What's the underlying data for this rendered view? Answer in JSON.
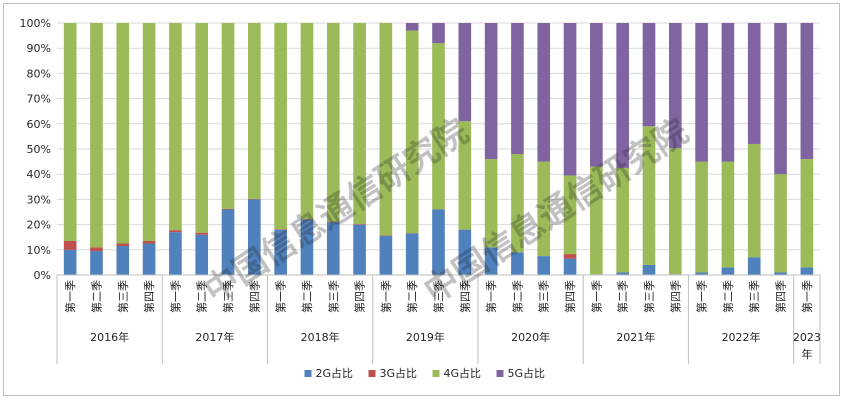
{
  "chart_data": {
    "type": "bar",
    "stacked": "percent",
    "categories": [
      {
        "quarter": "第一季",
        "year": "2016年"
      },
      {
        "quarter": "第二季",
        "year": "2016年"
      },
      {
        "quarter": "第三季",
        "year": "2016年"
      },
      {
        "quarter": "第四季",
        "year": "2016年"
      },
      {
        "quarter": "第一季",
        "year": "2017年"
      },
      {
        "quarter": "第二季",
        "year": "2017年"
      },
      {
        "quarter": "第三季",
        "year": "2017年"
      },
      {
        "quarter": "第四季",
        "year": "2017年"
      },
      {
        "quarter": "第一季",
        "year": "2018年"
      },
      {
        "quarter": "第二季",
        "year": "2018年"
      },
      {
        "quarter": "第三季",
        "year": "2018年"
      },
      {
        "quarter": "第四季",
        "year": "2018年"
      },
      {
        "quarter": "第一季",
        "year": "2019年"
      },
      {
        "quarter": "第二季",
        "year": "2019年"
      },
      {
        "quarter": "第三季",
        "year": "2019年"
      },
      {
        "quarter": "第四季",
        "year": "2019年"
      },
      {
        "quarter": "第一季",
        "year": "2020年"
      },
      {
        "quarter": "第二季",
        "year": "2020年"
      },
      {
        "quarter": "第三季",
        "year": "2020年"
      },
      {
        "quarter": "第四季",
        "year": "2020年"
      },
      {
        "quarter": "第一季",
        "year": "2021年"
      },
      {
        "quarter": "第二季",
        "year": "2021年"
      },
      {
        "quarter": "第三季",
        "year": "2021年"
      },
      {
        "quarter": "第四季",
        "year": "2021年"
      },
      {
        "quarter": "第一季",
        "year": "2022年"
      },
      {
        "quarter": "第二季",
        "year": "2022年"
      },
      {
        "quarter": "第三季",
        "year": "2022年"
      },
      {
        "quarter": "第四季",
        "year": "2022年"
      },
      {
        "quarter": "第一季",
        "year": "2023年"
      }
    ],
    "year_groups": [
      {
        "label": "2016年",
        "count": 4
      },
      {
        "label": "2017年",
        "count": 4
      },
      {
        "label": "2018年",
        "count": 4
      },
      {
        "label": "2019年",
        "count": 4
      },
      {
        "label": "2020年",
        "count": 4
      },
      {
        "label": "2021年",
        "count": 4
      },
      {
        "label": "2022年",
        "count": 4
      },
      {
        "label": "2023年",
        "count": 1
      }
    ],
    "series": [
      {
        "name": "2G占比",
        "color": "#4f81bd",
        "values": [
          10,
          9.5,
          11.5,
          12.5,
          17,
          16,
          26,
          30,
          18,
          22,
          21,
          20,
          15.5,
          16.5,
          26,
          18,
          11,
          9,
          7.5,
          6.5,
          0.3,
          1,
          4,
          0.3,
          1,
          3,
          7,
          1,
          3
        ]
      },
      {
        "name": "3G占比",
        "color": "#c0504d",
        "values": [
          3.5,
          1.5,
          1,
          1,
          0.8,
          0.8,
          0.3,
          0.2,
          0.2,
          0.2,
          0.2,
          0.2,
          0.2,
          0.1,
          0.1,
          0.1,
          0,
          0,
          0,
          1.8,
          0,
          0,
          0,
          0,
          0,
          0,
          0,
          0,
          0
        ]
      },
      {
        "name": "4G占比",
        "color": "#9bbb59",
        "values": [
          86.5,
          89,
          87.5,
          86.5,
          82.2,
          83.2,
          73.7,
          69.8,
          81.8,
          77.8,
          78.8,
          79.8,
          84.3,
          80.4,
          65.9,
          42.9,
          35,
          39,
          37.5,
          31.2,
          42.7,
          41.5,
          55,
          50,
          44,
          42,
          45,
          39,
          43
        ]
      },
      {
        "name": "5G占比",
        "color": "#8064a2",
        "values": [
          0,
          0,
          0,
          0,
          0,
          0,
          0,
          0,
          0,
          0,
          0,
          0,
          0,
          3,
          8,
          39,
          54,
          52,
          55,
          60.5,
          57,
          57.5,
          41,
          49.7,
          55,
          55,
          48,
          60,
          54
        ]
      }
    ],
    "yaxis": {
      "min": 0,
      "max": 100,
      "step": 10,
      "tick_labels": [
        "0%",
        "10%",
        "20%",
        "30%",
        "40%",
        "50%",
        "60%",
        "70%",
        "80%",
        "90%",
        "100%"
      ]
    },
    "grid": true,
    "legend_position": "bottom"
  },
  "watermark": "中国信息通信研究院"
}
